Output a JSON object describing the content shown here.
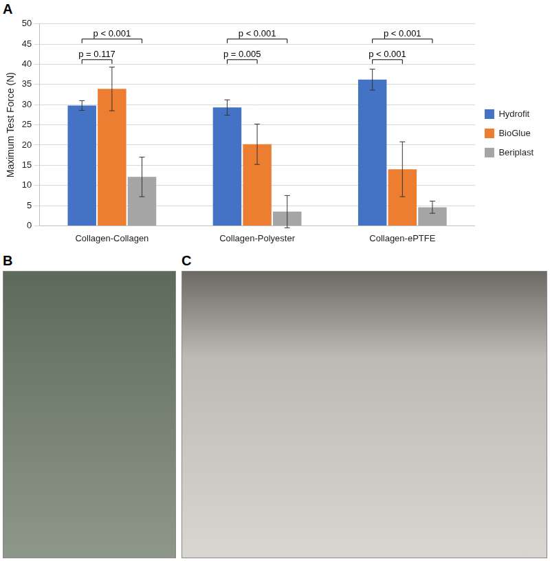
{
  "panel_labels": [
    "A",
    "B",
    "C"
  ],
  "chart_data": {
    "type": "bar",
    "y_label": "Maximum Test Force (N)",
    "categories": [
      "Collagen-Collagen",
      "Collagen-Polyester",
      "Collagen-ePTFE"
    ],
    "series": [
      {
        "name": "Hydrofit",
        "color": "#4472c4",
        "values": [
          29.8,
          29.3,
          36.2
        ],
        "errors": [
          1.2,
          1.9,
          2.6
        ]
      },
      {
        "name": "BioGlue",
        "color": "#ed7d31",
        "values": [
          33.9,
          20.2,
          14.0
        ],
        "errors": [
          5.4,
          5.0,
          6.8
        ]
      },
      {
        "name": "Beriplast",
        "color": "#a5a5a5",
        "values": [
          12.1,
          3.5,
          4.6
        ],
        "errors": [
          4.9,
          4.0,
          1.5
        ]
      }
    ],
    "ylim": [
      0,
      50
    ],
    "yticks": [
      0,
      5,
      10,
      15,
      20,
      25,
      30,
      35,
      40,
      45,
      50
    ],
    "grid": true,
    "legend": "right",
    "annotations": [
      {
        "category": "Collagen-Collagen",
        "series": [
          "Hydrofit",
          "BioGlue"
        ],
        "text": "p = 0.117"
      },
      {
        "category": "Collagen-Collagen",
        "series": [
          "Hydrofit",
          "Beriplast"
        ],
        "text": "p < 0.001"
      },
      {
        "category": "Collagen-Polyester",
        "series": [
          "Hydrofit",
          "BioGlue"
        ],
        "text": "p = 0.005"
      },
      {
        "category": "Collagen-Polyester",
        "series": [
          "Hydrofit",
          "Beriplast"
        ],
        "text": "p < 0.001"
      },
      {
        "category": "Collagen-ePTFE",
        "series": [
          "Hydrofit",
          "BioGlue"
        ],
        "text": "p < 0.001"
      },
      {
        "category": "Collagen-ePTFE",
        "series": [
          "Hydrofit",
          "Beriplast"
        ],
        "text": "p < 0.001"
      }
    ]
  }
}
